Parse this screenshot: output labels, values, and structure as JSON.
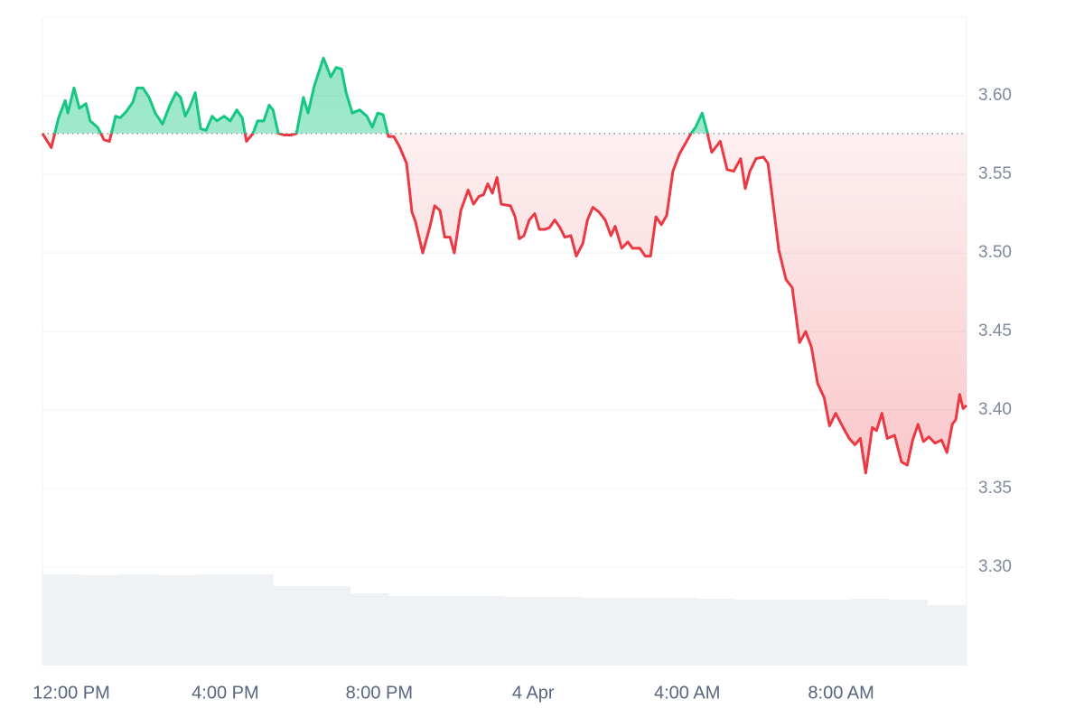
{
  "chart_data": {
    "type": "line",
    "x": [
      11.25,
      11.48,
      11.67,
      11.84,
      11.91,
      12.07,
      12.21,
      12.38,
      12.49,
      12.68,
      12.85,
      12.99,
      13.15,
      13.27,
      13.43,
      13.6,
      13.71,
      13.86,
      14.02,
      14.18,
      14.37,
      14.56,
      14.72,
      14.84,
      14.96,
      15.08,
      15.22,
      15.36,
      15.5,
      15.66,
      15.78,
      15.97,
      16.13,
      16.3,
      16.44,
      16.55,
      16.72,
      16.84,
      17.0,
      17.14,
      17.24,
      17.38,
      17.54,
      17.71,
      17.85,
      18.03,
      18.15,
      18.31,
      18.55,
      18.74,
      18.88,
      19.02,
      19.14,
      19.3,
      19.49,
      19.68,
      19.82,
      19.96,
      20.1,
      20.24,
      20.38,
      20.52,
      20.71,
      20.85,
      20.94,
      21.13,
      21.32,
      21.44,
      21.58,
      21.7,
      21.84,
      21.95,
      22.12,
      22.31,
      22.45,
      22.59,
      22.71,
      22.82,
      22.94,
      23.06,
      23.17,
      23.41,
      23.53,
      23.64,
      23.76,
      23.9,
      24.04,
      24.16,
      24.3,
      24.42,
      24.56,
      24.7,
      24.82,
      24.98,
      25.12,
      25.29,
      25.41,
      25.55,
      25.71,
      25.87,
      26.02,
      26.13,
      26.3,
      26.46,
      26.58,
      26.77,
      26.91,
      27.05,
      27.19,
      27.33,
      27.47,
      27.63,
      27.8,
      27.94,
      28.1,
      28.22,
      28.39,
      28.5,
      28.64,
      28.86,
      29.04,
      29.21,
      29.39,
      29.51,
      29.63,
      29.79,
      29.98,
      30.1,
      30.22,
      30.38,
      30.57,
      30.73,
      30.92,
      31.08,
      31.23,
      31.39,
      31.56,
      31.7,
      31.86,
      32.03,
      32.21,
      32.36,
      32.5,
      32.64,
      32.81,
      32.92,
      33.06,
      33.2,
      33.39,
      33.57,
      33.72,
      33.86,
      34.0,
      34.14,
      34.28,
      34.44,
      34.61,
      34.75,
      34.89,
      34.98,
      35.08,
      35.17,
      35.26
    ],
    "series": [
      {
        "up_color": "#16c784",
        "down_color": "#ea3943",
        "values": [
          3.576,
          3.567,
          3.586,
          3.597,
          3.589,
          3.605,
          3.592,
          3.595,
          3.584,
          3.58,
          3.572,
          3.571,
          3.587,
          3.586,
          3.59,
          3.596,
          3.605,
          3.605,
          3.599,
          3.589,
          3.582,
          3.594,
          3.602,
          3.599,
          3.587,
          3.593,
          3.602,
          3.579,
          3.578,
          3.587,
          3.584,
          3.587,
          3.584,
          3.591,
          3.586,
          3.571,
          3.576,
          3.584,
          3.584,
          3.594,
          3.591,
          3.576,
          3.575,
          3.575,
          3.576,
          3.599,
          3.589,
          3.606,
          3.624,
          3.612,
          3.618,
          3.617,
          3.602,
          3.589,
          3.591,
          3.587,
          3.58,
          3.589,
          3.588,
          3.574,
          3.574,
          3.568,
          3.557,
          3.526,
          3.52,
          3.5,
          3.517,
          3.53,
          3.527,
          3.51,
          3.51,
          3.5,
          3.527,
          3.54,
          3.531,
          3.536,
          3.537,
          3.544,
          3.538,
          3.548,
          3.531,
          3.53,
          3.523,
          3.509,
          3.511,
          3.521,
          3.525,
          3.515,
          3.515,
          3.516,
          3.521,
          3.516,
          3.51,
          3.511,
          3.498,
          3.506,
          3.521,
          3.529,
          3.526,
          3.521,
          3.511,
          3.517,
          3.503,
          3.507,
          3.503,
          3.503,
          3.498,
          3.498,
          3.523,
          3.518,
          3.524,
          3.552,
          3.563,
          3.569,
          3.576,
          3.58,
          3.589,
          3.579,
          3.564,
          3.571,
          3.553,
          3.552,
          3.56,
          3.541,
          3.552,
          3.56,
          3.561,
          3.557,
          3.534,
          3.502,
          3.483,
          3.478,
          3.443,
          3.45,
          3.44,
          3.417,
          3.408,
          3.39,
          3.398,
          3.39,
          3.382,
          3.378,
          3.382,
          3.36,
          3.389,
          3.387,
          3.398,
          3.382,
          3.384,
          3.367,
          3.365,
          3.381,
          3.391,
          3.38,
          3.383,
          3.379,
          3.381,
          3.373,
          3.391,
          3.394,
          3.41,
          3.401,
          3.403
        ]
      }
    ],
    "volume": {
      "color": "#eff2f5",
      "x": [
        11.25,
        12.25,
        13.25,
        14.25,
        15.25,
        16.25,
        17.25,
        18.25,
        19.25,
        20.25,
        21.25,
        22.25,
        23.25,
        24.25,
        25.25,
        26.25,
        27.25,
        28.25,
        29.25,
        30.25,
        31.25,
        32.25,
        33.25,
        34.25
      ],
      "values": [
        101,
        100,
        101,
        100,
        101,
        101,
        88,
        88,
        80,
        77,
        77,
        77,
        76,
        76,
        75,
        75,
        75,
        74,
        73,
        73,
        73,
        74,
        73,
        67
      ]
    },
    "xlim": [
      11.25,
      35.26
    ],
    "xticks": [
      {
        "value": 12,
        "label": "12:00 PM"
      },
      {
        "value": 16,
        "label": "4:00 PM"
      },
      {
        "value": 20,
        "label": "8:00 PM"
      },
      {
        "value": 24,
        "label": "4 Apr"
      },
      {
        "value": 28,
        "label": "4:00 AM"
      },
      {
        "value": 32,
        "label": "8:00 AM"
      }
    ],
    "ylim": [
      3.2375,
      3.65
    ],
    "yticks": [
      {
        "value": 3.3,
        "label": "3.30"
      },
      3.35,
      {
        "value": 3.4,
        "label": "3.40"
      },
      3.45,
      {
        "value": 3.5,
        "label": "3.50"
      },
      3.55,
      {
        "value": 3.6,
        "label": "3.60"
      }
    ],
    "grid": true
  }
}
